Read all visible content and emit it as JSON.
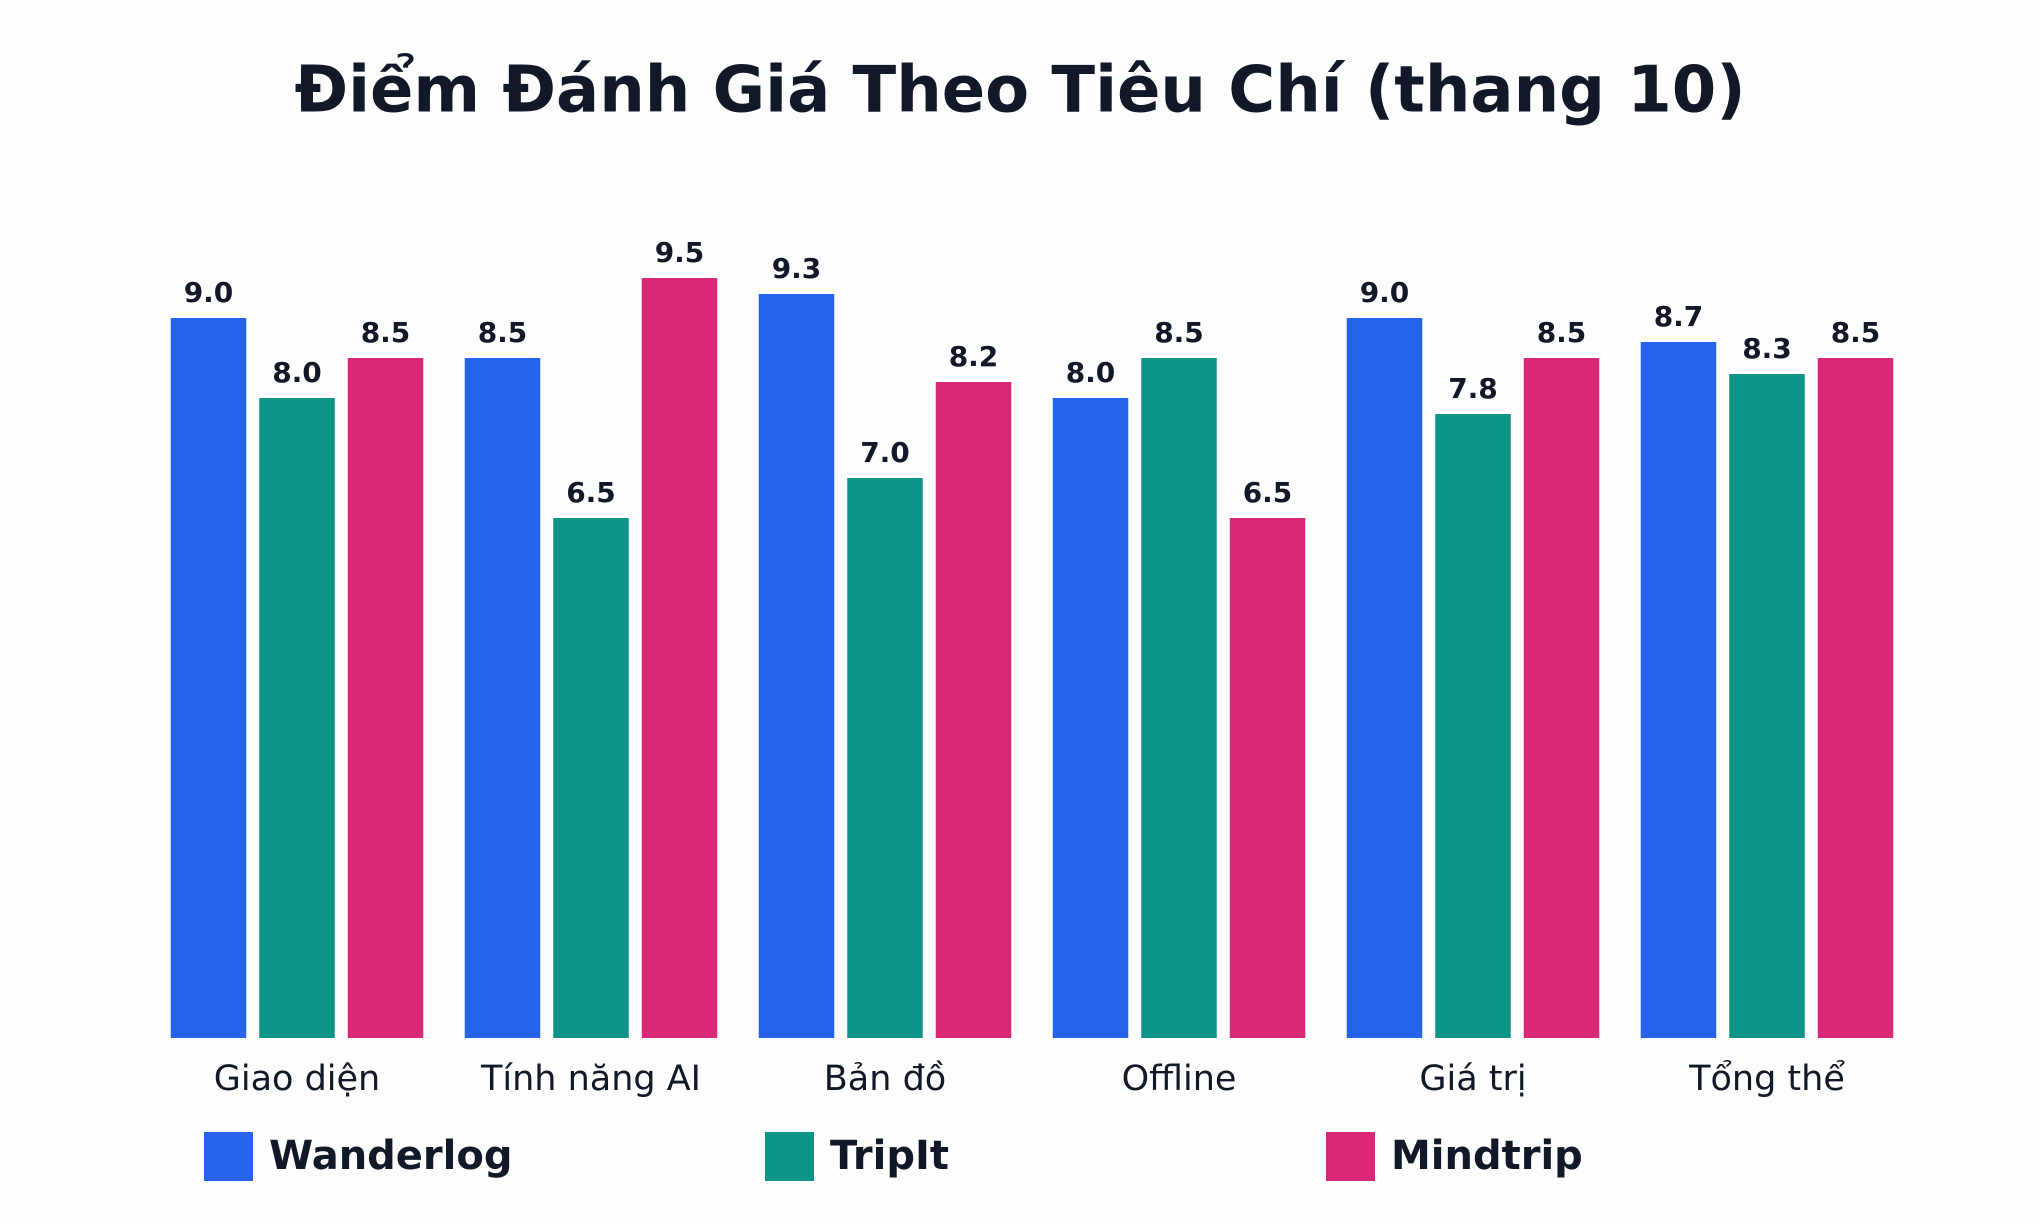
{
  "chart_data": {
    "type": "bar",
    "title": "Điểm Đánh Giá Theo Tiêu Chí (thang 10)",
    "categories": [
      "Giao diện",
      "Tính năng AI",
      "Bản đồ",
      "Offline",
      "Giá trị",
      "Tổng thể"
    ],
    "series": [
      {
        "name": "Wanderlog",
        "color": "#2563eb",
        "values": [
          9,
          8.5,
          9.3,
          8,
          9,
          8.7
        ],
        "value_labels": [
          "9.0",
          "8.5",
          "9.3",
          "8.0",
          "9.0",
          "8.7"
        ]
      },
      {
        "name": "TripIt",
        "color": "#0d9488",
        "values": [
          8,
          6.5,
          7,
          8.5,
          7.8,
          8.3
        ],
        "value_labels": [
          "8.0",
          "6.5",
          "7.0",
          "8.5",
          "7.8",
          "8.3"
        ]
      },
      {
        "name": "Mindtrip",
        "color": "#db2777",
        "values": [
          8.5,
          9.5,
          8.2,
          6.5,
          8.5,
          8.5
        ],
        "value_labels": [
          "8.5",
          "9.5",
          "8.2",
          "6.5",
          "8.5",
          "8.5"
        ]
      }
    ],
    "ylim": [
      0,
      10
    ],
    "grid": false,
    "legend": "bottom"
  }
}
